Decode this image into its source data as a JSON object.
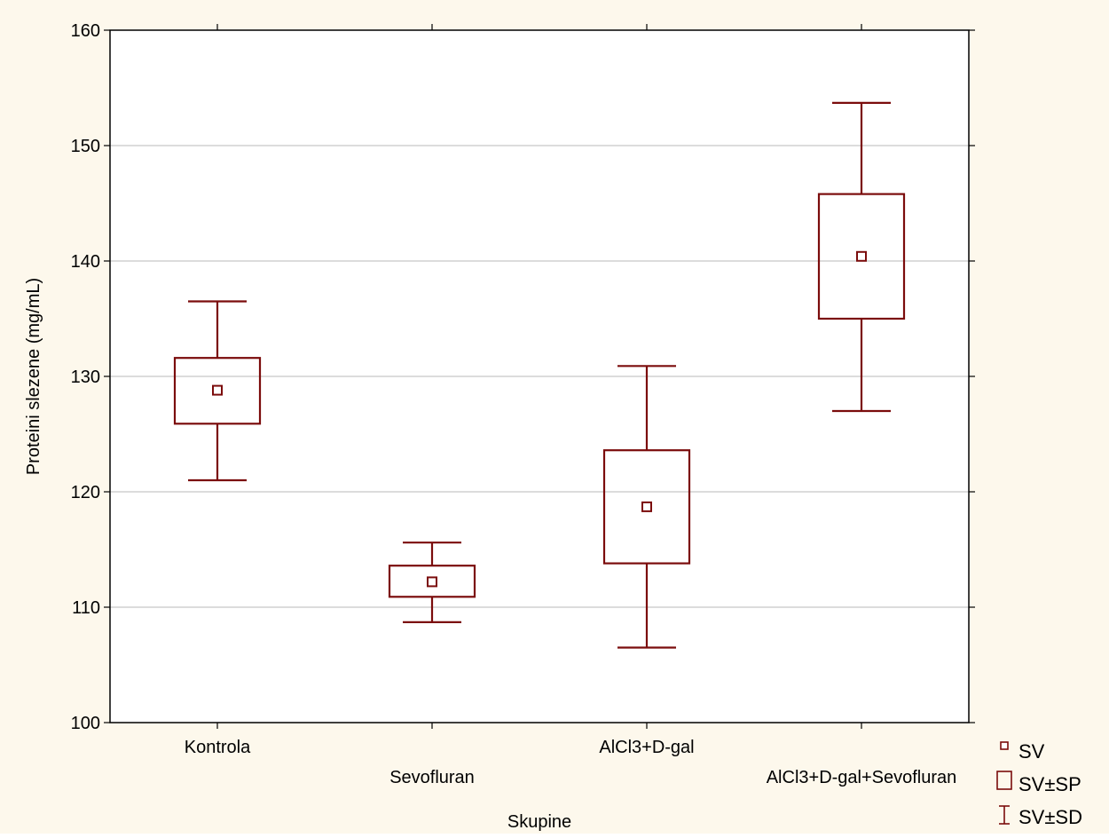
{
  "colors": {
    "background": "#fdf8ec",
    "plot_area": "#ffffff",
    "series": "#7b0c0c",
    "grid": "#c8c8c8",
    "axis": "#000000"
  },
  "chart_data": {
    "type": "box",
    "title": "",
    "xlabel": "Skupine",
    "ylabel": "Proteini slezene (mg/mL)",
    "ylim": [
      100,
      160
    ],
    "yticks": [
      100,
      110,
      120,
      130,
      140,
      150,
      160
    ],
    "grid": true,
    "categories": [
      "Kontrola",
      "Sevofluran",
      "AlCl3+D-gal",
      "AlCl3+D-gal+Sevofluran"
    ],
    "mean": [
      128.8,
      112.2,
      118.7,
      140.4
    ],
    "se_low": [
      125.9,
      110.9,
      113.8,
      135.0
    ],
    "se_high": [
      131.6,
      113.6,
      123.6,
      145.8
    ],
    "sd_low": [
      121.0,
      108.7,
      106.5,
      127.0
    ],
    "sd_high": [
      136.5,
      115.6,
      130.9,
      153.7
    ],
    "legend_position": "bottom-right",
    "legend": [
      "SV",
      "SV±SP",
      "SV±SD"
    ]
  }
}
